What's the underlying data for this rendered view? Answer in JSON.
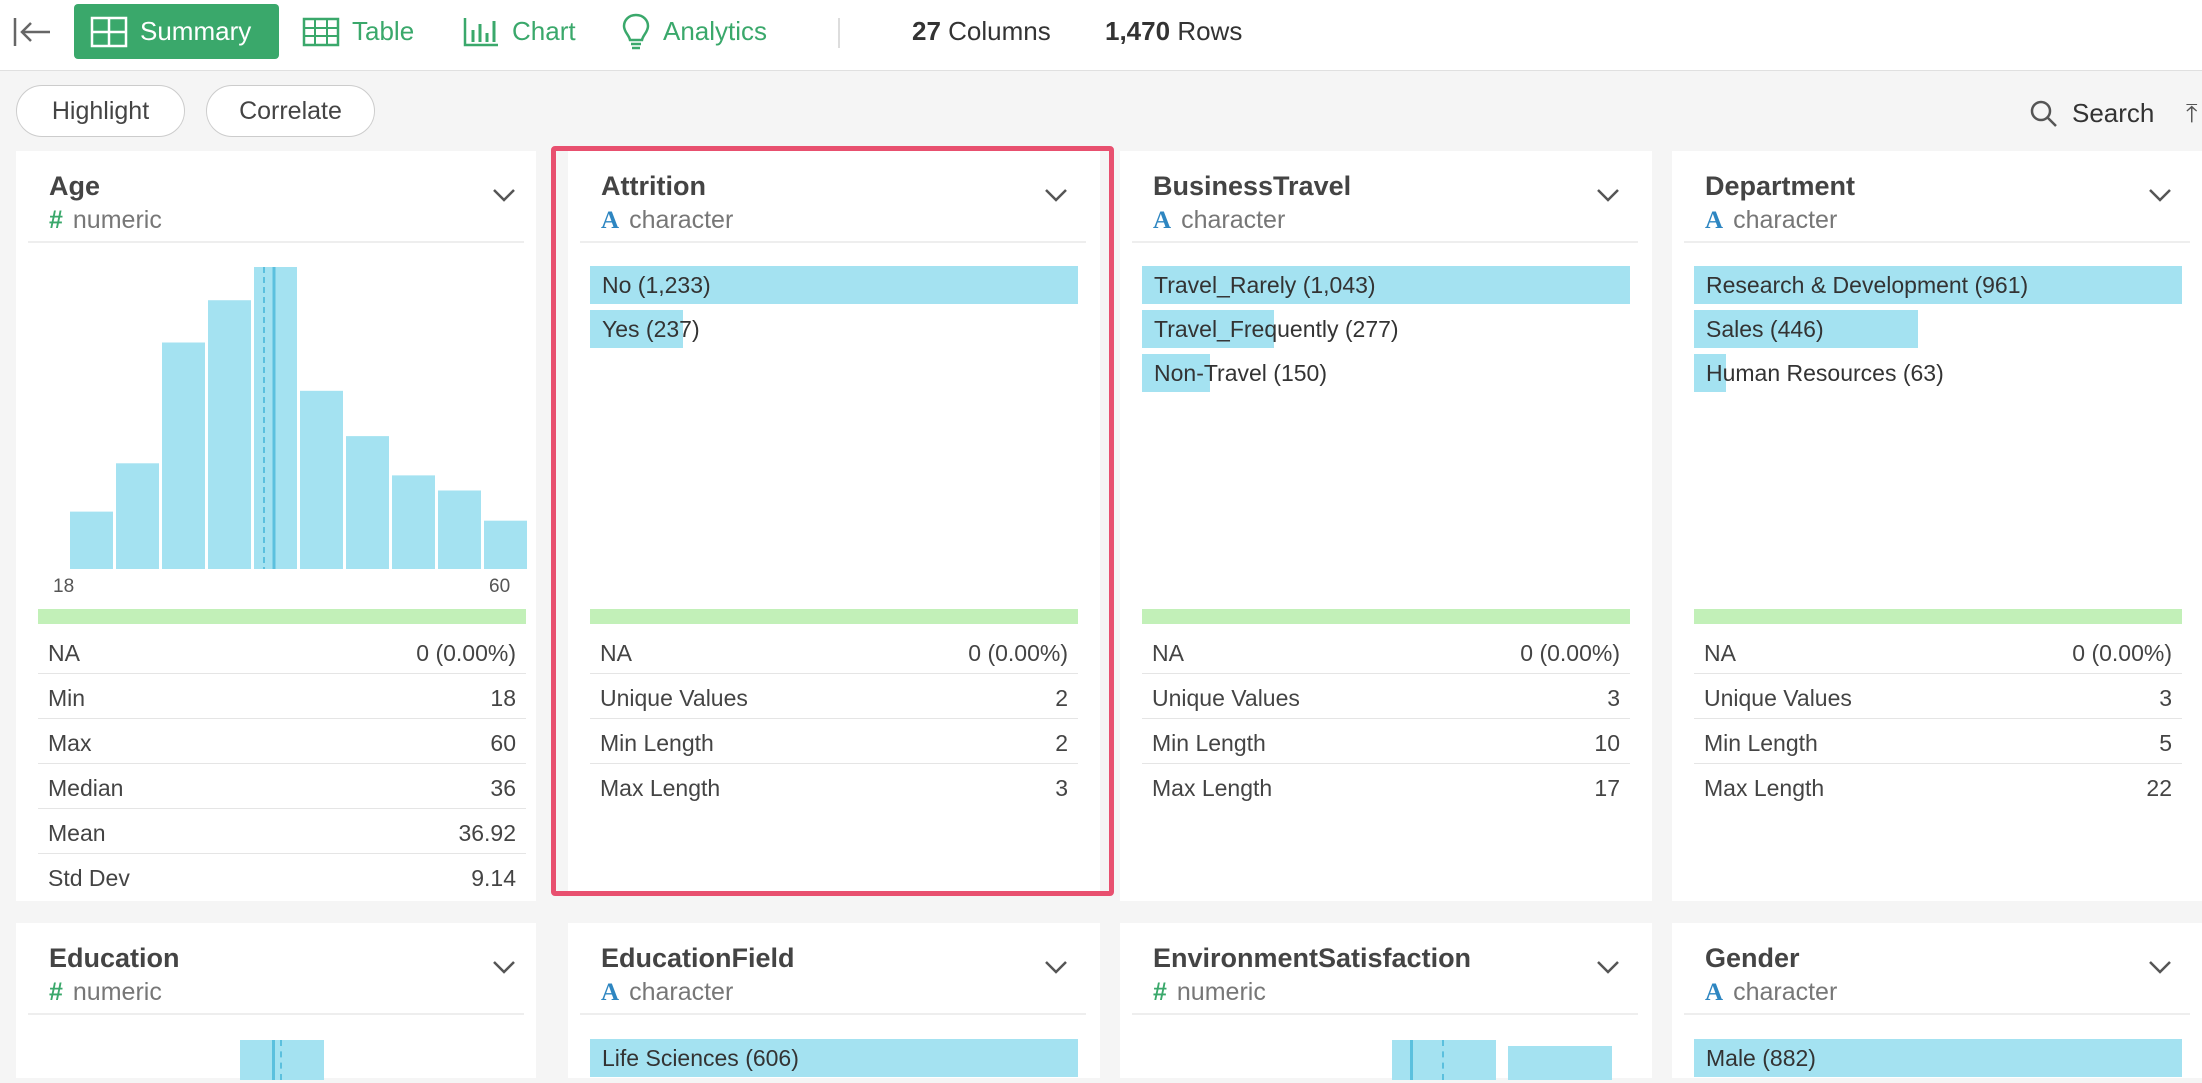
{
  "toolbar": {
    "tabs": [
      {
        "label": "Summary",
        "icon": "summary-grid-icon",
        "active": true
      },
      {
        "label": "Table",
        "icon": "table-icon",
        "active": false
      },
      {
        "label": "Chart",
        "icon": "bar-chart-icon",
        "active": false
      },
      {
        "label": "Analytics",
        "icon": "lightbulb-icon",
        "active": false
      }
    ],
    "columns_count": "27",
    "columns_label": "Columns",
    "rows_count": "1,470",
    "rows_label": "Rows"
  },
  "subbar": {
    "highlight_label": "Highlight",
    "correlate_label": "Correlate",
    "search_label": "Search"
  },
  "colors": {
    "accent": "#3aa86b",
    "bar": "#a4e2f1",
    "na_bar": "#c2f0b8",
    "highlight": "#e8506f",
    "mean_line": "#5bc0de"
  },
  "cards": [
    {
      "title": "Age",
      "type": "numeric",
      "histogram": {
        "values": [
          0.19,
          0.35,
          0.75,
          0.89,
          1.0,
          0.59,
          0.44,
          0.31,
          0.26,
          0.16
        ],
        "min_label": "18",
        "max_label": "60"
      },
      "stats": [
        {
          "k": "NA",
          "v": "0 (0.00%)"
        },
        {
          "k": "Min",
          "v": "18"
        },
        {
          "k": "Max",
          "v": "60"
        },
        {
          "k": "Median",
          "v": "36"
        },
        {
          "k": "Mean",
          "v": "36.92"
        },
        {
          "k": "Std Dev",
          "v": "9.14"
        }
      ]
    },
    {
      "title": "Attrition",
      "type": "character",
      "bars": [
        {
          "label": "No (1,233)",
          "frac": 1.0
        },
        {
          "label": "Yes (237)",
          "frac": 0.19
        }
      ],
      "stats": [
        {
          "k": "NA",
          "v": "0 (0.00%)"
        },
        {
          "k": "Unique Values",
          "v": "2"
        },
        {
          "k": "Min Length",
          "v": "2"
        },
        {
          "k": "Max Length",
          "v": "3"
        }
      ]
    },
    {
      "title": "BusinessTravel",
      "type": "character",
      "bars": [
        {
          "label": "Travel_Rarely (1,043)",
          "frac": 1.0
        },
        {
          "label": "Travel_Frequently (277)",
          "frac": 0.27
        },
        {
          "label": "Non-Travel (150)",
          "frac": 0.14
        }
      ],
      "stats": [
        {
          "k": "NA",
          "v": "0 (0.00%)"
        },
        {
          "k": "Unique Values",
          "v": "3"
        },
        {
          "k": "Min Length",
          "v": "10"
        },
        {
          "k": "Max Length",
          "v": "17"
        }
      ]
    },
    {
      "title": "Department",
      "type": "character",
      "bars": [
        {
          "label": "Research & Development (961)",
          "frac": 1.0
        },
        {
          "label": "Sales (446)",
          "frac": 0.46
        },
        {
          "label": "Human Resources (63)",
          "frac": 0.065
        }
      ],
      "stats": [
        {
          "k": "NA",
          "v": "0 (0.00%)"
        },
        {
          "k": "Unique Values",
          "v": "3"
        },
        {
          "k": "Min Length",
          "v": "5"
        },
        {
          "k": "Max Length",
          "v": "22"
        }
      ]
    },
    {
      "title": "Education",
      "type": "numeric"
    },
    {
      "title": "EducationField",
      "type": "character",
      "bars": [
        {
          "label": "Life Sciences (606)",
          "frac": 1.0
        }
      ]
    },
    {
      "title": "EnvironmentSatisfaction",
      "type": "numeric"
    },
    {
      "title": "Gender",
      "type": "character",
      "bars": [
        {
          "label": "Male (882)",
          "frac": 1.0
        }
      ]
    }
  ]
}
